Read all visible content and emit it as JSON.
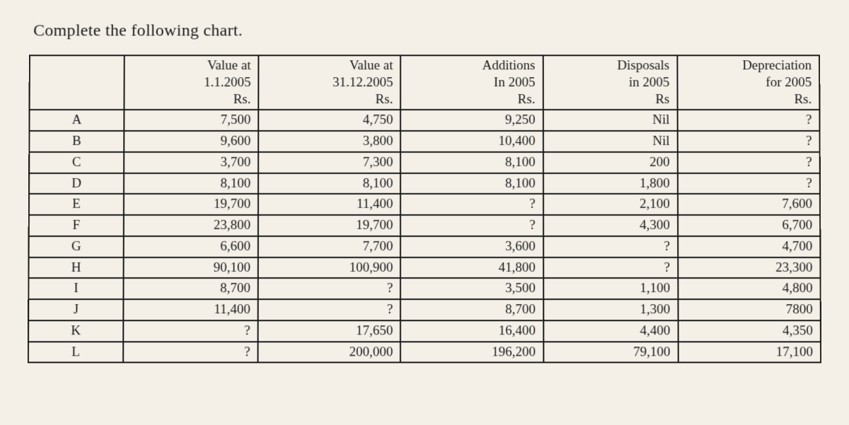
{
  "title": "Complete the following chart.",
  "columns": [
    {
      "lines": [
        "",
        "",
        ""
      ]
    },
    {
      "lines": [
        "Value at",
        "1.1.2005",
        "Rs."
      ]
    },
    {
      "lines": [
        "Value at",
        "31.12.2005",
        "Rs."
      ]
    },
    {
      "lines": [
        "Additions",
        "In 2005",
        "Rs."
      ]
    },
    {
      "lines": [
        "Disposals",
        "in 2005",
        "Rs"
      ]
    },
    {
      "lines": [
        "Depreciation",
        "for 2005",
        "Rs."
      ]
    }
  ],
  "rows": [
    {
      "label": "A",
      "cells": [
        "7,500",
        "4,750",
        "9,250",
        "Nil",
        "?"
      ]
    },
    {
      "label": "B",
      "cells": [
        "9,600",
        "3,800",
        "10,400",
        "Nil",
        "?"
      ]
    },
    {
      "label": "C",
      "cells": [
        "3,700",
        "7,300",
        "8,100",
        "200",
        "?"
      ]
    },
    {
      "label": "D",
      "cells": [
        "8,100",
        "8,100",
        "8,100",
        "1,800",
        "?"
      ]
    },
    {
      "label": "E",
      "cells": [
        "19,700",
        "11,400",
        "?",
        "2,100",
        "7,600"
      ]
    },
    {
      "label": "F",
      "cells": [
        "23,800",
        "19,700",
        "?",
        "4,300",
        "6,700"
      ]
    },
    {
      "label": "G",
      "cells": [
        "6,600",
        "7,700",
        "3,600",
        "?",
        "4,700"
      ]
    },
    {
      "label": "H",
      "cells": [
        "90,100",
        "100,900",
        "41,800",
        "?",
        "23,300"
      ]
    },
    {
      "label": "I",
      "cells": [
        "8,700",
        "?",
        "3,500",
        "1,100",
        "4,800"
      ]
    },
    {
      "label": "J",
      "cells": [
        "11,400",
        "?",
        "8,700",
        "1,300",
        "7800"
      ]
    },
    {
      "label": "K",
      "cells": [
        "?",
        "17,650",
        "16,400",
        "4,400",
        "4,350"
      ]
    },
    {
      "label": "L",
      "cells": [
        "?",
        "200,000",
        "196,200",
        "79,100",
        "17,100"
      ]
    }
  ],
  "styles": {
    "background_color": "#f4f0e8",
    "text_color": "#1a1a1a",
    "border_color": "#1a1a1a",
    "font_family": "Georgia, Times New Roman, serif",
    "title_fontsize": 24,
    "cell_fontsize": 19,
    "col_widths_pct": [
      12,
      17,
      18,
      18,
      17,
      18
    ]
  }
}
